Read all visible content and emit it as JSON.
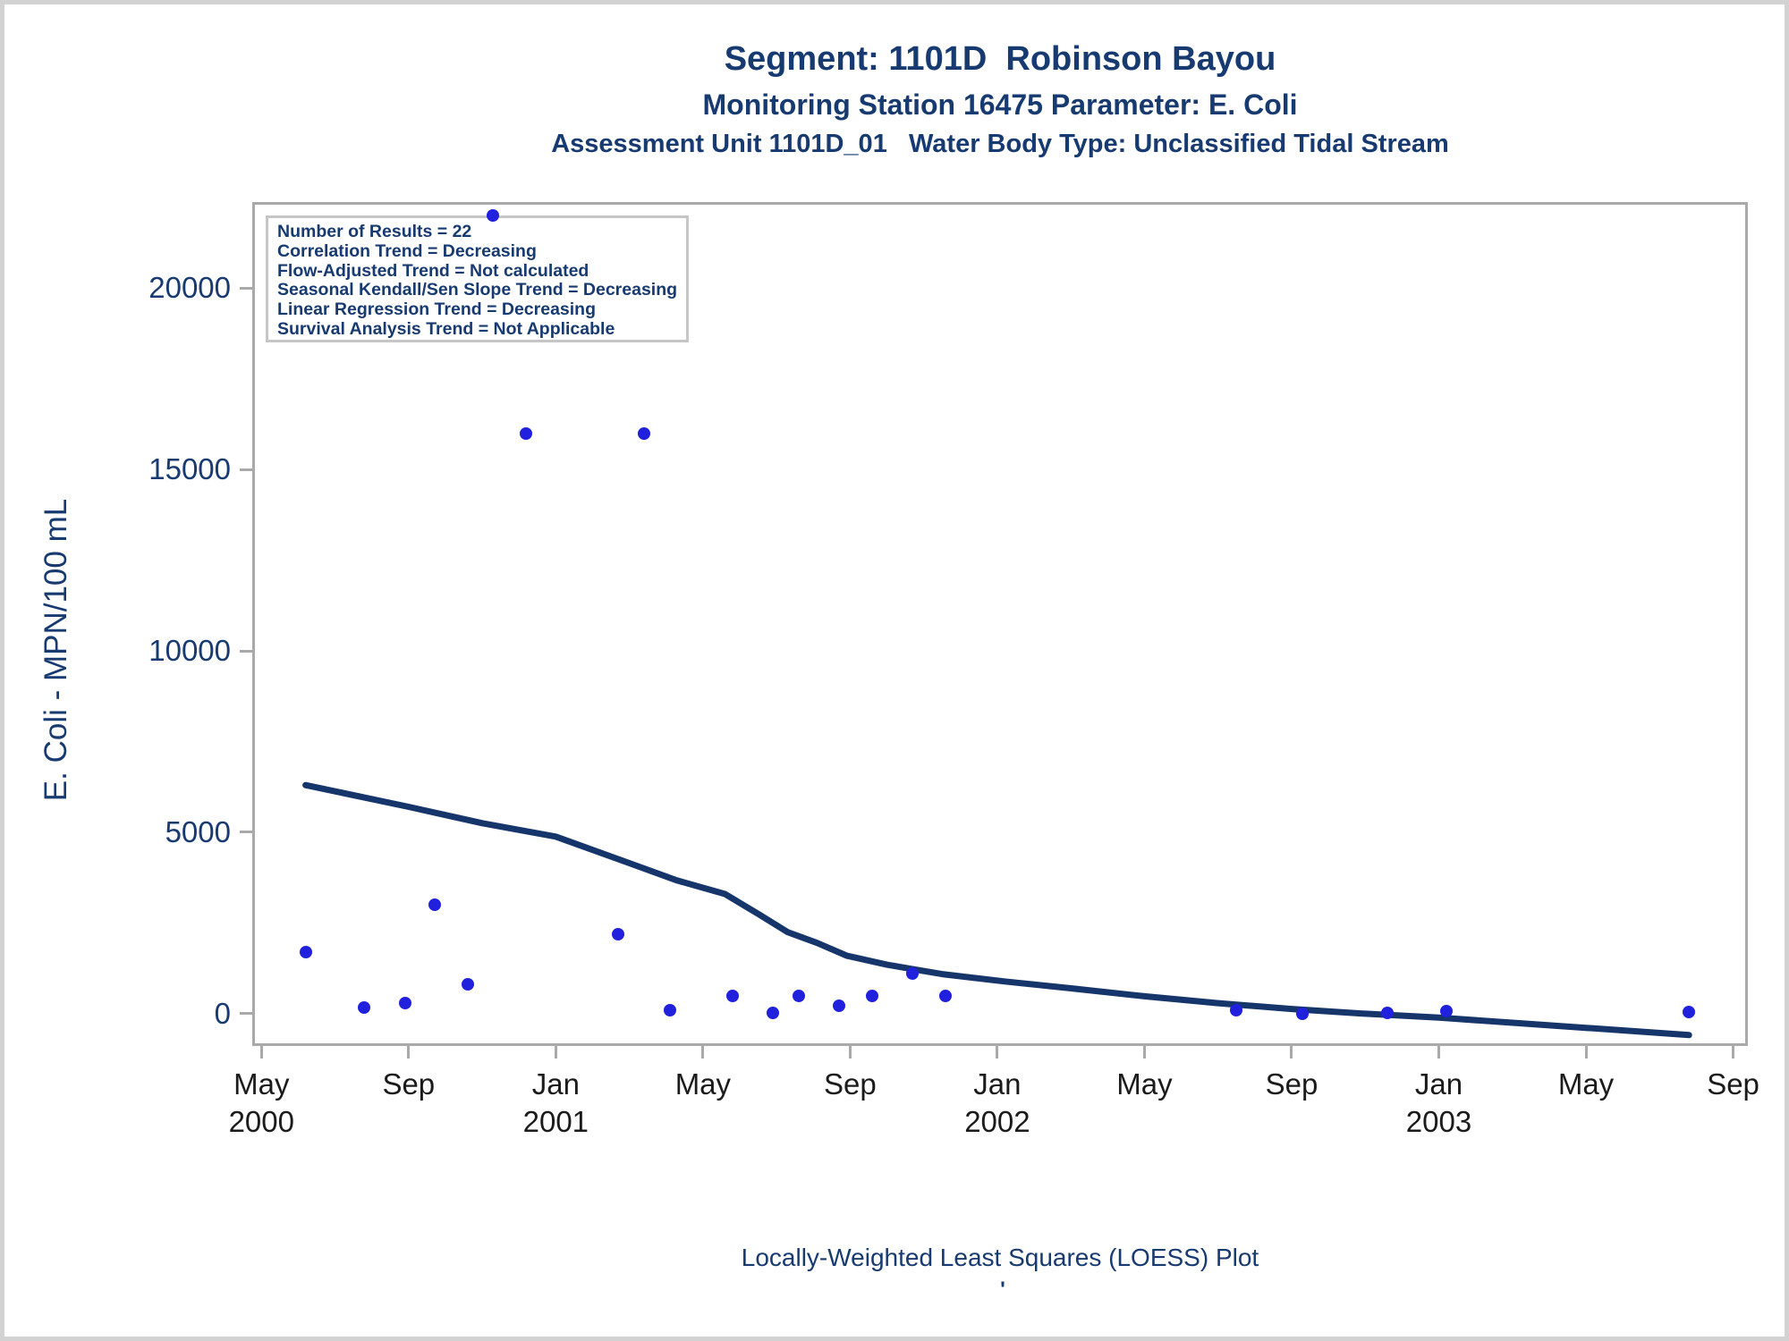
{
  "titles": {
    "title1": "Segment: 1101D  Robinson Bayou",
    "title2": "Monitoring Station 16475 Parameter: E. Coli",
    "title3": "Assessment Unit 1101D_01   Water Body Type: Unclassified Tidal Stream"
  },
  "stats_box": {
    "lines": [
      "Number of Results = 22",
      "Correlation Trend = Decreasing",
      "Flow-Adjusted Trend = Not calculated",
      "Seasonal Kendall/Sen Slope Trend = Decreasing",
      "Linear Regression Trend = Decreasing",
      "Survival Analysis Trend = Not Applicable"
    ]
  },
  "footer": {
    "caption": "Locally-Weighted Least Squares (LOESS) Plot",
    "footnote_mark": "'"
  },
  "colors": {
    "title_navy": "#173a70",
    "loess_line": "#15356b",
    "point_blue": "#2121dd",
    "axis_gray": "#a9a9a9",
    "x_label_black": "#1b1b1b",
    "stats_border": "#c6c6c6",
    "page_border": "#d2d2d2"
  },
  "chart_data": {
    "type": "scatter",
    "title": "Segment: 1101D  Robinson Bayou",
    "subtitle": "Monitoring Station 16475 Parameter: E. Coli",
    "xlabel": "",
    "ylabel": "E. Coli - MPN/100 mL",
    "x_unit": "months since Jan 2000",
    "xlim": [
      3.75,
      44.4
    ],
    "ylim": [
      -890,
      22370
    ],
    "grid": false,
    "legend": "none",
    "y_ticks": [
      0,
      5000,
      10000,
      15000,
      20000
    ],
    "x_ticks": [
      {
        "m": 4,
        "label": "May",
        "year": "2000"
      },
      {
        "m": 8,
        "label": "Sep",
        "year": ""
      },
      {
        "m": 12,
        "label": "Jan",
        "year": "2001"
      },
      {
        "m": 16,
        "label": "May",
        "year": ""
      },
      {
        "m": 20,
        "label": "Sep",
        "year": ""
      },
      {
        "m": 24,
        "label": "Jan",
        "year": "2002"
      },
      {
        "m": 28,
        "label": "May",
        "year": ""
      },
      {
        "m": 32,
        "label": "Sep",
        "year": ""
      },
      {
        "m": 36,
        "label": "Jan",
        "year": "2003"
      },
      {
        "m": 40,
        "label": "May",
        "year": ""
      },
      {
        "m": 44,
        "label": "Sep",
        "year": ""
      }
    ],
    "points": [
      {
        "x": 5.2,
        "y": 1700
      },
      {
        "x": 6.8,
        "y": 170
      },
      {
        "x": 7.9,
        "y": 300
      },
      {
        "x": 8.7,
        "y": 3000
      },
      {
        "x": 9.6,
        "y": 800
      },
      {
        "x": 10.3,
        "y": 22000
      },
      {
        "x": 11.2,
        "y": 16000
      },
      {
        "x": 13.7,
        "y": 2200
      },
      {
        "x": 14.4,
        "y": 16000
      },
      {
        "x": 15.1,
        "y": 100
      },
      {
        "x": 16.8,
        "y": 500
      },
      {
        "x": 17.9,
        "y": 30
      },
      {
        "x": 18.6,
        "y": 500
      },
      {
        "x": 19.7,
        "y": 220
      },
      {
        "x": 20.6,
        "y": 500
      },
      {
        "x": 21.7,
        "y": 1100
      },
      {
        "x": 22.6,
        "y": 500
      },
      {
        "x": 30.5,
        "y": 100
      },
      {
        "x": 32.3,
        "y": 0
      },
      {
        "x": 34.6,
        "y": 30
      },
      {
        "x": 36.2,
        "y": 60
      },
      {
        "x": 42.8,
        "y": 50
      }
    ],
    "loess_line": [
      [
        5.2,
        6300
      ],
      [
        8,
        5700
      ],
      [
        10,
        5250
      ],
      [
        12,
        4880
      ],
      [
        14,
        4150
      ],
      [
        15.3,
        3670
      ],
      [
        16.6,
        3300
      ],
      [
        17.5,
        2750
      ],
      [
        18.3,
        2250
      ],
      [
        19.1,
        1950
      ],
      [
        19.9,
        1600
      ],
      [
        21,
        1350
      ],
      [
        22.5,
        1090
      ],
      [
        24.2,
        890
      ],
      [
        26,
        700
      ],
      [
        28,
        480
      ],
      [
        30,
        290
      ],
      [
        32,
        130
      ],
      [
        34,
        0
      ],
      [
        36,
        -110
      ],
      [
        38,
        -250
      ],
      [
        40,
        -390
      ],
      [
        42.8,
        -590
      ]
    ]
  }
}
